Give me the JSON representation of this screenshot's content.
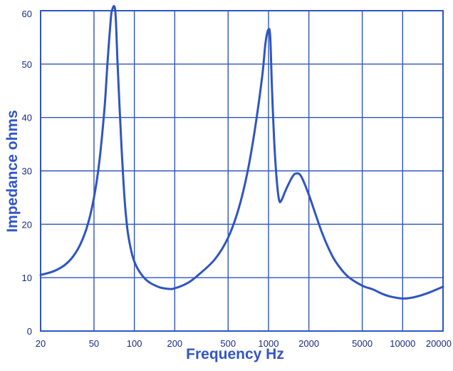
{
  "chart_data": {
    "type": "line",
    "xlabel": "Frequency Hz",
    "ylabel": "Impedance ohms",
    "x_scale": "log",
    "xlim": [
      20,
      20000
    ],
    "ylim": [
      0,
      60
    ],
    "grid": true,
    "colors": {
      "curve": "#2f55c0",
      "grid": "#2f55c0",
      "label": "#3355c8",
      "tick": "#1a2a80"
    },
    "x_ticks": [
      {
        "value": 20,
        "label": "20"
      },
      {
        "value": 50,
        "label": "50"
      },
      {
        "value": 100,
        "label": "100"
      },
      {
        "value": 200,
        "label": "200"
      },
      {
        "value": 500,
        "label": "500"
      },
      {
        "value": 1000,
        "label": "1000"
      },
      {
        "value": 2000,
        "label": "2000"
      },
      {
        "value": 5000,
        "label": "5000"
      },
      {
        "value": 10000,
        "label": "10000"
      },
      {
        "value": 20000,
        "label": "20000"
      }
    ],
    "y_ticks": [
      {
        "value": 0,
        "label": "0"
      },
      {
        "value": 10,
        "label": "10"
      },
      {
        "value": 20,
        "label": "20"
      },
      {
        "value": 30,
        "label": "30"
      },
      {
        "value": 40,
        "label": "40"
      },
      {
        "value": 50,
        "label": "50"
      },
      {
        "value": 60,
        "label": "60"
      }
    ],
    "series": [
      {
        "points": [
          [
            20,
            10.5
          ],
          [
            25,
            11.2
          ],
          [
            30,
            12.3
          ],
          [
            35,
            14.0
          ],
          [
            40,
            16.5
          ],
          [
            45,
            20.0
          ],
          [
            50,
            25.0
          ],
          [
            55,
            32.0
          ],
          [
            60,
            42.0
          ],
          [
            63,
            50.0
          ],
          [
            66,
            57.0
          ],
          [
            68,
            60.0
          ],
          [
            72,
            60.0
          ],
          [
            75,
            50.0
          ],
          [
            80,
            35.0
          ],
          [
            85,
            24.0
          ],
          [
            90,
            18.0
          ],
          [
            100,
            13.0
          ],
          [
            120,
            9.8
          ],
          [
            150,
            8.3
          ],
          [
            180,
            7.9
          ],
          [
            200,
            8.0
          ],
          [
            250,
            9.0
          ],
          [
            300,
            10.5
          ],
          [
            400,
            13.5
          ],
          [
            500,
            17.5
          ],
          [
            600,
            23.0
          ],
          [
            700,
            30.0
          ],
          [
            800,
            38.5
          ],
          [
            900,
            48.0
          ],
          [
            950,
            54.0
          ],
          [
            1000,
            56.5
          ],
          [
            1030,
            55.0
          ],
          [
            1060,
            46.0
          ],
          [
            1100,
            36.0
          ],
          [
            1150,
            28.5
          ],
          [
            1200,
            24.5
          ],
          [
            1250,
            24.5
          ],
          [
            1350,
            26.5
          ],
          [
            1500,
            28.8
          ],
          [
            1600,
            29.5
          ],
          [
            1750,
            29.0
          ],
          [
            2000,
            25.5
          ],
          [
            2500,
            18.5
          ],
          [
            3000,
            14.0
          ],
          [
            3500,
            11.5
          ],
          [
            4000,
            10.0
          ],
          [
            5000,
            8.5
          ],
          [
            6000,
            7.8
          ],
          [
            7000,
            7.0
          ],
          [
            8000,
            6.5
          ],
          [
            10000,
            6.1
          ],
          [
            12000,
            6.3
          ],
          [
            15000,
            7.0
          ],
          [
            20000,
            8.3
          ]
        ]
      }
    ]
  }
}
